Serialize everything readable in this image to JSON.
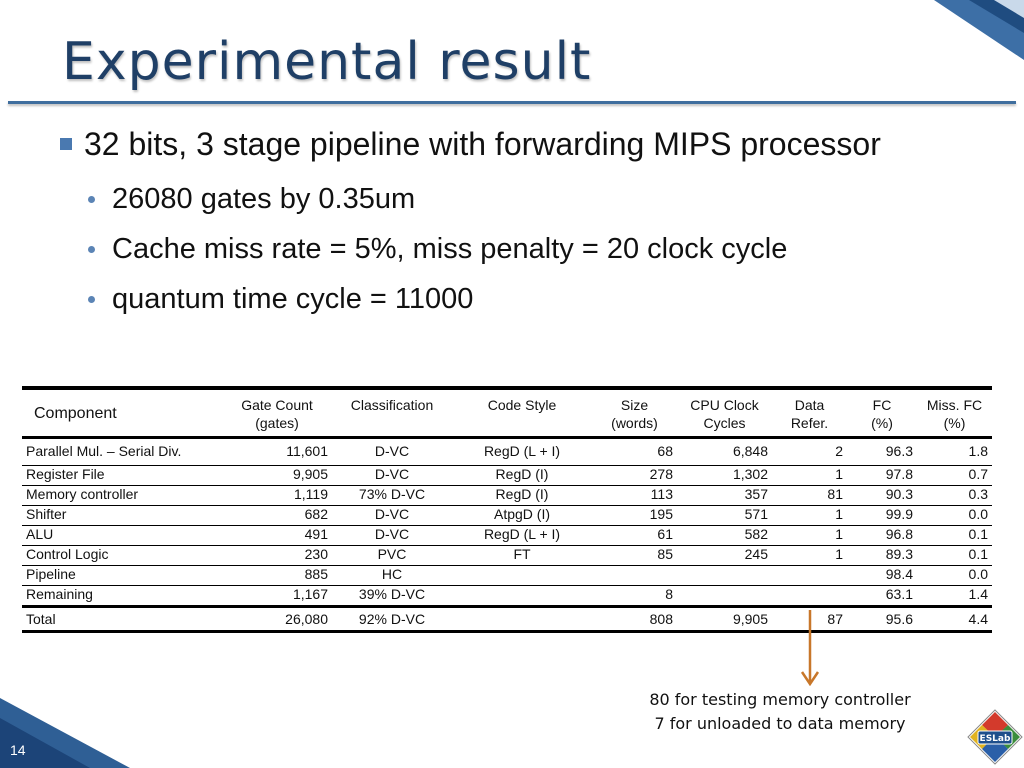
{
  "slide": {
    "title": "Experimental result",
    "page_number": "14",
    "logo_text": "ESLab"
  },
  "bullets": {
    "main": {
      "text": "32 bits, 3 stage pipeline with forwarding MIPS processor",
      "subs": [
        "26080 gates by 0.35um",
        "Cache miss rate = 5%, miss penalty = 20 clock cycle",
        "quantum time cycle = 11000"
      ]
    }
  },
  "table": {
    "headers": [
      {
        "line1": "Component",
        "line2": ""
      },
      {
        "line1": "Gate Count",
        "line2": "(gates)"
      },
      {
        "line1": "Classification",
        "line2": ""
      },
      {
        "line1": "Code Style",
        "line2": ""
      },
      {
        "line1": "Size",
        "line2": "(words)"
      },
      {
        "line1": "CPU Clock",
        "line2": "Cycles"
      },
      {
        "line1": "Data",
        "line2": "Refer."
      },
      {
        "line1": "FC",
        "line2": "(%)"
      },
      {
        "line1": "Miss. FC",
        "line2": "(%)"
      }
    ],
    "rows": [
      [
        "Parallel Mul. – Serial Div.",
        "11,601",
        "D-VC",
        "RegD (L + I)",
        "68",
        "6,848",
        "2",
        "96.3",
        "1.8"
      ],
      [
        "Register File",
        "9,905",
        "D-VC",
        "RegD (I)",
        "278",
        "1,302",
        "1",
        "97.8",
        "0.7"
      ],
      [
        "Memory controller",
        "1,119",
        "73% D-VC",
        "RegD (I)",
        "113",
        "357",
        "81",
        "90.3",
        "0.3"
      ],
      [
        "Shifter",
        "682",
        "D-VC",
        "AtpgD (I)",
        "195",
        "571",
        "1",
        "99.9",
        "0.0"
      ],
      [
        "ALU",
        "491",
        "D-VC",
        "RegD (L + I)",
        "61",
        "582",
        "1",
        "96.8",
        "0.1"
      ],
      [
        "Control Logic",
        "230",
        "PVC",
        "FT",
        "85",
        "245",
        "1",
        "89.3",
        "0.1"
      ],
      [
        "Pipeline",
        "885",
        "HC",
        "",
        "",
        "",
        "",
        "98.4",
        "0.0"
      ],
      [
        "Remaining",
        "1,167",
        "39% D-VC",
        "",
        "8",
        "",
        "",
        "63.1",
        "1.4"
      ]
    ],
    "total": [
      "Total",
      "26,080",
      "92% D-VC",
      "",
      "808",
      "9,905",
      "87",
      "95.6",
      "4.4"
    ]
  },
  "note": {
    "line1": "80 for testing memory controller",
    "line2": "7 for unloaded to data memory"
  },
  "colors": {
    "title": "#1f3f66",
    "rule": "#3f6e9e",
    "bullet": "#4a79b0",
    "arrow": "#c8772a"
  }
}
